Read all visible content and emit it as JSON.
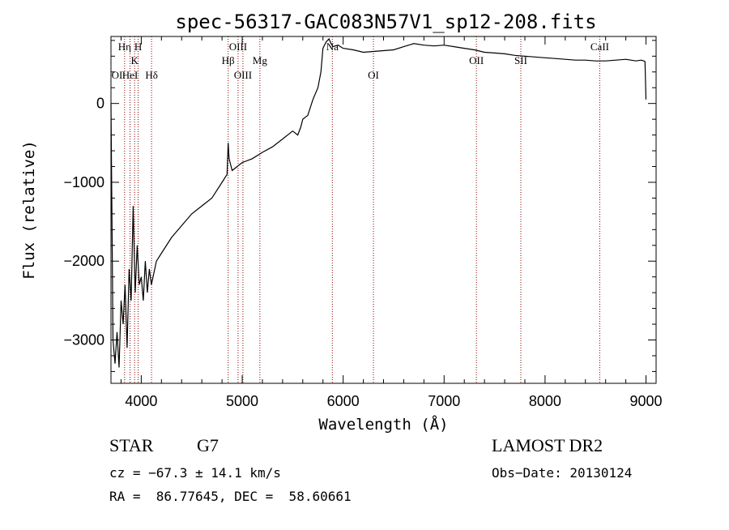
{
  "chart_data": {
    "type": "line",
    "title": "spec-56317-GAC083N57V1_sp12-208.fits",
    "xlabel": "Wavelength (Å)",
    "ylabel": "Flux (relative)",
    "xlim": [
      3700,
      9100
    ],
    "ylim": [
      -3550,
      850
    ],
    "x_ticks": [
      4000,
      5000,
      6000,
      7000,
      8000,
      9000
    ],
    "y_ticks": [
      -3000,
      -2000,
      -1000,
      0
    ],
    "x_tick_labels": [
      "4000",
      "5000",
      "6000",
      "7000",
      "8000",
      "9000"
    ],
    "y_tick_labels": [
      "−3000",
      "−2000",
      "−1000",
      "0"
    ],
    "grid": false,
    "line_color": "#000000",
    "marker_color": "#8b0000",
    "spectrum": {
      "x": [
        3700,
        3720,
        3740,
        3760,
        3780,
        3800,
        3820,
        3840,
        3860,
        3880,
        3900,
        3920,
        3940,
        3960,
        3980,
        4000,
        4020,
        4040,
        4060,
        4080,
        4100,
        4150,
        4200,
        4300,
        4400,
        4500,
        4600,
        4700,
        4800,
        4850,
        4861,
        4870,
        4900,
        4950,
        5000,
        5100,
        5200,
        5300,
        5400,
        5500,
        5550,
        5580,
        5600,
        5650,
        5700,
        5750,
        5780,
        5800,
        5830,
        5860,
        5880,
        5900,
        5950,
        6000,
        6100,
        6200,
        6300,
        6400,
        6500,
        6600,
        6700,
        6800,
        6900,
        7000,
        7100,
        7200,
        7300,
        7400,
        7500,
        7600,
        7700,
        7800,
        7900,
        8000,
        8100,
        8200,
        8300,
        8400,
        8500,
        8600,
        8700,
        8800,
        8900,
        8950,
        8980,
        8990,
        9000
      ],
      "y": [
        0,
        -3000,
        -3300,
        -2900,
        -3350,
        -2500,
        -2800,
        -2300,
        -3100,
        -2100,
        -2500,
        -1300,
        -2400,
        -1800,
        -2300,
        -2200,
        -2500,
        -2000,
        -2400,
        -2100,
        -2300,
        -2000,
        -1900,
        -1700,
        -1550,
        -1400,
        -1300,
        -1200,
        -1000,
        -900,
        -500,
        -700,
        -850,
        -800,
        -750,
        -700,
        -620,
        -550,
        -450,
        -350,
        -400,
        -300,
        -200,
        -150,
        50,
        200,
        400,
        700,
        780,
        820,
        760,
        720,
        740,
        700,
        680,
        650,
        660,
        670,
        680,
        720,
        760,
        740,
        730,
        740,
        720,
        700,
        680,
        650,
        640,
        630,
        610,
        600,
        590,
        580,
        570,
        560,
        550,
        550,
        540,
        540,
        550,
        560,
        540,
        550,
        540,
        530,
        50
      ]
    },
    "annotations": [
      {
        "label": "Hη",
        "x": 3835,
        "row": 0
      },
      {
        "label": "H",
        "x": 3969,
        "row": 0
      },
      {
        "label": "K",
        "x": 3934,
        "row": 1
      },
      {
        "label": "OI",
        "x": 3760,
        "row": 2
      },
      {
        "label": "HeI",
        "x": 3889,
        "row": 2
      },
      {
        "label": "Hδ",
        "x": 4102,
        "row": 2
      },
      {
        "label": "OIII",
        "x": 4959,
        "row": 0
      },
      {
        "label": "Hβ",
        "x": 4861,
        "row": 1
      },
      {
        "label": "Mg",
        "x": 5175,
        "row": 1
      },
      {
        "label": "OIII",
        "x": 5007,
        "row": 2
      },
      {
        "label": "Na",
        "x": 5893,
        "row": 0
      },
      {
        "label": "OI",
        "x": 6300,
        "row": 2
      },
      {
        "label": "OII",
        "x": 7320,
        "row": 1
      },
      {
        "label": "SII",
        "x": 7760,
        "row": 1
      },
      {
        "label": "CaII",
        "x": 8542,
        "row": 0
      }
    ],
    "marker_lines": [
      3835,
      3889,
      3934,
      3969,
      4102,
      4861,
      4959,
      5007,
      5175,
      5893,
      6300,
      7320,
      7760,
      8542
    ]
  },
  "info": {
    "object_class": "STAR",
    "subclass": "G7",
    "survey": "LAMOST DR2",
    "cz": "cz = −67.3 ± 14.1 km/s",
    "obs_date": "Obs−Date: 20130124",
    "coords": "RA =  86.77645, DEC =  58.60661"
  }
}
